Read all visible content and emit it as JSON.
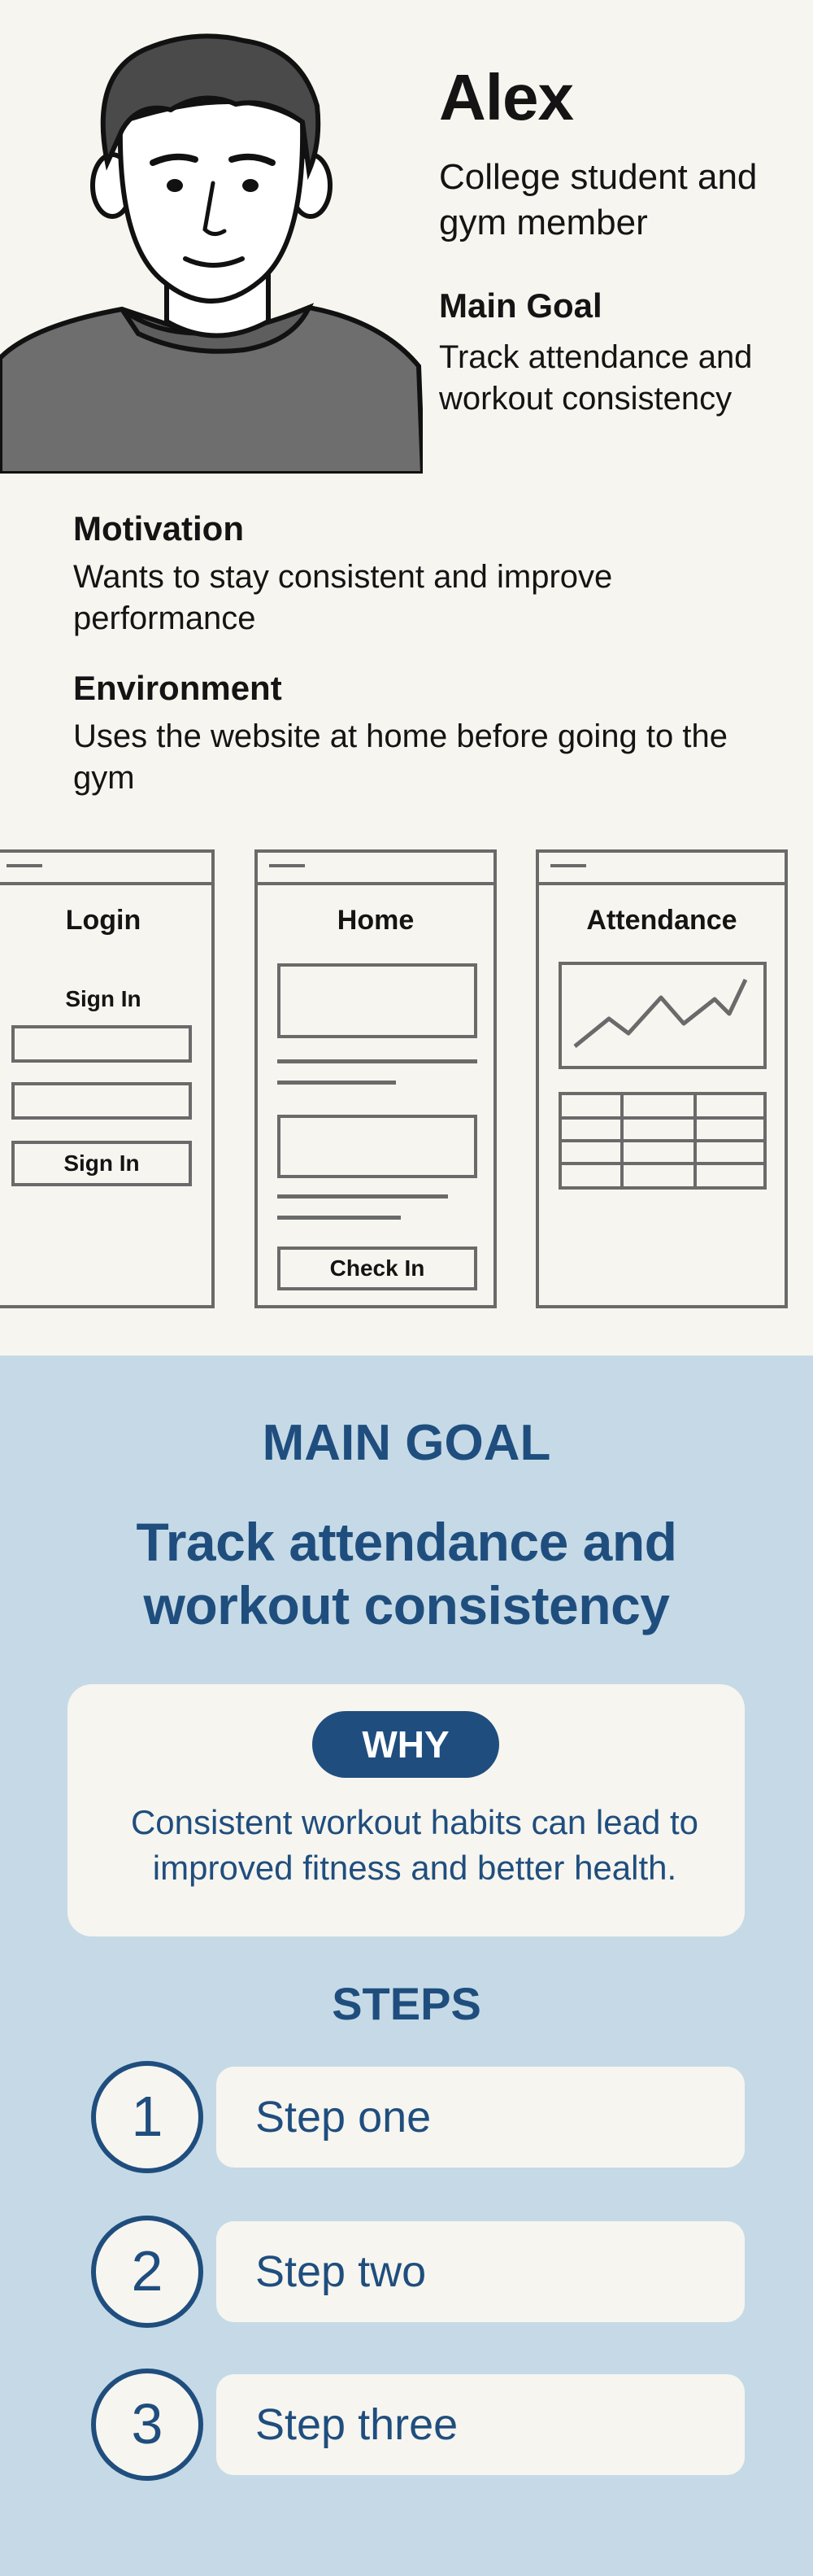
{
  "persona": {
    "name": "Alex",
    "role": "College student and gym member",
    "main_goal_title": "Main Goal",
    "main_goal_text": "Track attendance and workout consistency",
    "avatar_icon": "person-portrait-icon"
  },
  "motivation": {
    "title": "Motivation",
    "text": "Wants to stay consistent and improve performance"
  },
  "environment": {
    "title": "Environment",
    "text": "Uses the website at home before going to the gym"
  },
  "wireframes": {
    "login": {
      "title": "Login",
      "form_label": "Sign In",
      "button": "Sign In"
    },
    "home": {
      "title": "Home",
      "button": "Check In"
    },
    "attendance": {
      "title": "Attendance",
      "chart_icon": "line-chart-icon"
    }
  },
  "goal_section": {
    "heading": "MAIN GOAL",
    "goal_line1": "Track attendance and",
    "goal_line2": "workout consistency",
    "why_label": "WHY",
    "why_text": "Consistent workout habits can lead to improved fitness and better health.",
    "steps_heading": "STEPS",
    "steps": [
      {
        "number": "1",
        "label": "Step one"
      },
      {
        "number": "2",
        "label": "Step two"
      },
      {
        "number": "3",
        "label": "Step three"
      }
    ]
  },
  "colors": {
    "background": "#f7f5ef",
    "accent_blue": "#1f4e7e",
    "section_blue": "#c5dae6",
    "card": "#f7f5f0",
    "wireframe_stroke": "#6a6a6a"
  }
}
